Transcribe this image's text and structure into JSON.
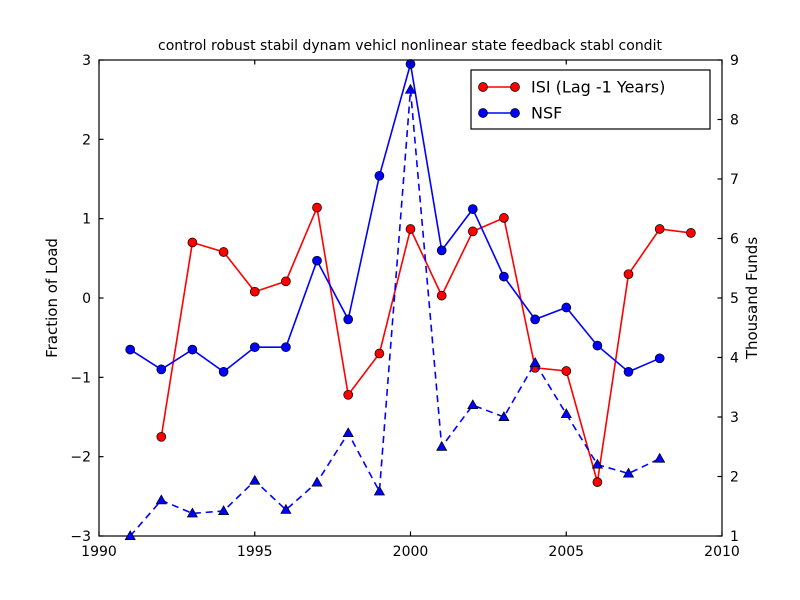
{
  "figure": {
    "background": "#ffffff",
    "frame_color": "#000000"
  },
  "chart_data": {
    "type": "line",
    "title": "control robust stabil dynam vehicl nonlinear state feedback stabl condit",
    "x_axis": {
      "label": "",
      "lim": [
        1990,
        2010
      ],
      "ticks": [
        1990,
        1995,
        2000,
        2005,
        2010
      ],
      "tick_labels": [
        "1990",
        "1995",
        "2000",
        "2005",
        "2010"
      ]
    },
    "left_axis": {
      "label": "Fraction of Load",
      "lim": [
        -3,
        3
      ],
      "ticks": [
        -3,
        -2,
        -1,
        0,
        1,
        2,
        3
      ],
      "tick_labels": [
        "−3",
        "−2",
        "−1",
        "0",
        "1",
        "2",
        "3"
      ]
    },
    "right_axis": {
      "label": "Thousand Funds",
      "lim": [
        1,
        9
      ],
      "ticks": [
        1,
        2,
        3,
        4,
        5,
        6,
        7,
        8,
        9
      ],
      "tick_labels": [
        "1",
        "2",
        "3",
        "4",
        "5",
        "6",
        "7",
        "8",
        "9"
      ]
    },
    "legend": {
      "position": "upper-right",
      "entries": [
        "ISI (Lag -1 Years)",
        "NSF"
      ]
    },
    "grid": false,
    "series": [
      {
        "name": "ISI (Lag -1 Years)",
        "in_legend": true,
        "axis": "left",
        "color": "#ff0000",
        "line_style": "solid",
        "marker": "circle",
        "x": [
          1992,
          1993,
          1994,
          1995,
          1996,
          1997,
          1998,
          1999,
          2000,
          2001,
          2002,
          2003,
          2004,
          2005,
          2006,
          2007,
          2008,
          2009
        ],
        "y": [
          -1.75,
          0.7,
          0.58,
          0.08,
          0.21,
          1.14,
          -1.22,
          -0.7,
          0.87,
          0.03,
          0.84,
          1.01,
          -0.88,
          -0.92,
          -2.32,
          0.3,
          0.87,
          0.82
        ]
      },
      {
        "name": "NSF",
        "in_legend": true,
        "axis": "left",
        "color": "#0000ff",
        "line_style": "solid",
        "marker": "circle",
        "x": [
          1991,
          1992,
          1993,
          1994,
          1995,
          1996,
          1997,
          1998,
          1999,
          2000,
          2001,
          2002,
          2003,
          2004,
          2005,
          2006,
          2007,
          2008
        ],
        "y": [
          -0.65,
          -0.9,
          -0.65,
          -0.93,
          -0.62,
          -0.62,
          0.47,
          -0.27,
          1.54,
          2.95,
          0.6,
          1.12,
          0.27,
          -0.27,
          -0.12,
          -0.6,
          -0.93,
          -0.76
        ]
      },
      {
        "name": "",
        "in_legend": false,
        "axis": "right",
        "color": "#0000ff",
        "line_style": "dashed",
        "marker": "triangle-up",
        "x": [
          1991,
          1992,
          1993,
          1994,
          1995,
          1996,
          1997,
          1998,
          1999,
          2000,
          2001,
          2002,
          2003,
          2004,
          2005,
          2006,
          2007,
          2008
        ],
        "y": [
          1.0,
          1.6,
          1.38,
          1.42,
          1.93,
          1.44,
          1.9,
          2.73,
          1.75,
          8.5,
          2.5,
          3.2,
          3.0,
          3.91,
          3.05,
          2.2,
          2.05,
          2.3
        ]
      }
    ]
  }
}
